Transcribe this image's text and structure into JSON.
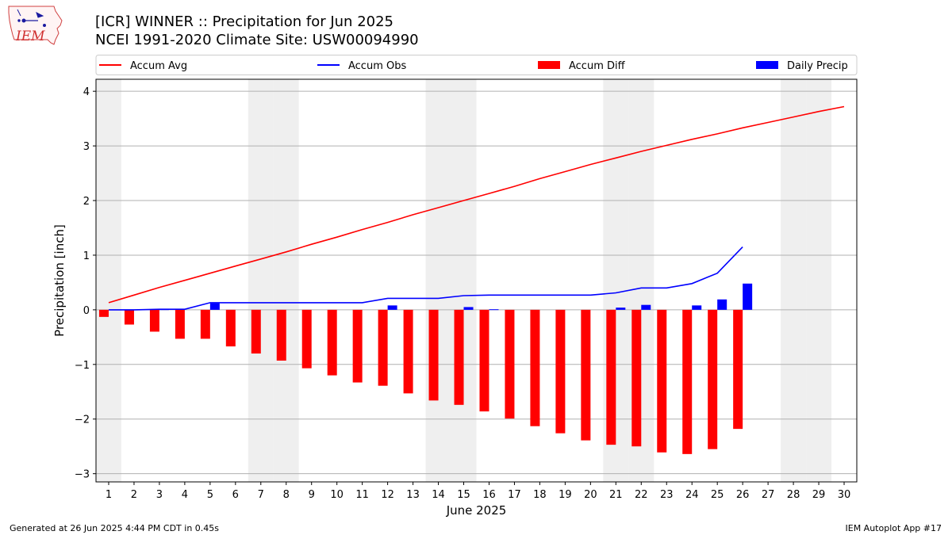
{
  "header": {
    "title_line1": "[ICR] WINNER :: Precipitation for Jun 2025",
    "title_line2": "NCEI 1991-2020 Climate Site: USW00094990"
  },
  "logo": {
    "text": "IEM",
    "icon": "iowa-state-outline-logo"
  },
  "footer": {
    "left": "Generated at 26 Jun 2025 4:44 PM CDT in 0.45s",
    "right": "IEM Autoplot App #17"
  },
  "colors": {
    "avg": "#ff0000",
    "obs": "#0000ff",
    "diff": "#ff0000",
    "daily": "#0000ff",
    "weekend_shade": "#efefef",
    "grid": "#b0b0b0"
  },
  "chart_data": {
    "type": "bar",
    "title": "[ICR] WINNER :: Precipitation for Jun 2025",
    "subtitle": "NCEI 1991-2020 Climate Site: USW00094990",
    "xlabel": "June 2025",
    "ylabel": "Precipitation [inch]",
    "xlim": [
      0.5,
      30.5
    ],
    "ylim": [
      -3.15,
      4.22
    ],
    "x_ticks": [
      1,
      2,
      3,
      4,
      5,
      6,
      7,
      8,
      9,
      10,
      11,
      12,
      13,
      14,
      15,
      16,
      17,
      18,
      19,
      20,
      21,
      22,
      23,
      24,
      25,
      26,
      27,
      28,
      29,
      30
    ],
    "y_ticks": [
      -3,
      -2,
      -1,
      0,
      1,
      2,
      3,
      4
    ],
    "y_tick_labels": [
      "−3",
      "−2",
      "−1",
      "0",
      "1",
      "2",
      "3",
      "4"
    ],
    "grid": "y-major",
    "legend_placement": "top, above plot, 4 columns",
    "weekend_shaded_days": [
      1,
      7,
      8,
      14,
      15,
      21,
      22,
      28,
      29
    ],
    "series": [
      {
        "name": "Accum Avg",
        "kind": "line",
        "x": [
          1,
          2,
          3,
          4,
          5,
          6,
          7,
          8,
          9,
          10,
          11,
          12,
          13,
          14,
          15,
          16,
          17,
          18,
          19,
          20,
          21,
          22,
          23,
          24,
          25,
          26,
          27,
          28,
          29,
          30
        ],
        "values": [
          0.13,
          0.27,
          0.41,
          0.54,
          0.67,
          0.8,
          0.93,
          1.06,
          1.2,
          1.33,
          1.47,
          1.6,
          1.74,
          1.87,
          2.0,
          2.13,
          2.26,
          2.4,
          2.53,
          2.66,
          2.78,
          2.9,
          3.01,
          3.12,
          3.22,
          3.33,
          3.43,
          3.53,
          3.63,
          3.72
        ]
      },
      {
        "name": "Accum Obs",
        "kind": "line",
        "x": [
          1,
          2,
          3,
          4,
          5,
          6,
          7,
          8,
          9,
          10,
          11,
          12,
          13,
          14,
          15,
          16,
          17,
          18,
          19,
          20,
          21,
          22,
          23,
          24,
          25,
          26
        ],
        "values": [
          0.0,
          0.0,
          0.01,
          0.01,
          0.13,
          0.13,
          0.13,
          0.13,
          0.13,
          0.13,
          0.13,
          0.21,
          0.21,
          0.21,
          0.26,
          0.27,
          0.27,
          0.27,
          0.27,
          0.27,
          0.31,
          0.4,
          0.4,
          0.48,
          0.67,
          1.15
        ]
      },
      {
        "name": "Accum Diff",
        "kind": "bar",
        "x": [
          1,
          2,
          3,
          4,
          5,
          6,
          7,
          8,
          9,
          10,
          11,
          12,
          13,
          14,
          15,
          16,
          17,
          18,
          19,
          20,
          21,
          22,
          23,
          24,
          25,
          26
        ],
        "values": [
          -0.13,
          -0.27,
          -0.4,
          -0.53,
          -0.53,
          -0.67,
          -0.8,
          -0.93,
          -1.07,
          -1.2,
          -1.33,
          -1.39,
          -1.53,
          -1.66,
          -1.74,
          -1.86,
          -1.99,
          -2.13,
          -2.26,
          -2.39,
          -2.47,
          -2.5,
          -2.61,
          -2.64,
          -2.55,
          -2.18
        ]
      },
      {
        "name": "Daily Precip",
        "kind": "bar",
        "x": [
          1,
          2,
          3,
          4,
          5,
          6,
          7,
          8,
          9,
          10,
          11,
          12,
          13,
          14,
          15,
          16,
          17,
          18,
          19,
          20,
          21,
          22,
          23,
          24,
          25,
          26
        ],
        "values": [
          0.0,
          0.0,
          0.01,
          0.0,
          0.12,
          0.0,
          0.0,
          0.0,
          0.0,
          0.0,
          0.0,
          0.08,
          0.0,
          0.0,
          0.05,
          0.01,
          0.0,
          0.0,
          0.0,
          0.0,
          0.04,
          0.09,
          0.0,
          0.08,
          0.19,
          0.48
        ]
      }
    ]
  }
}
